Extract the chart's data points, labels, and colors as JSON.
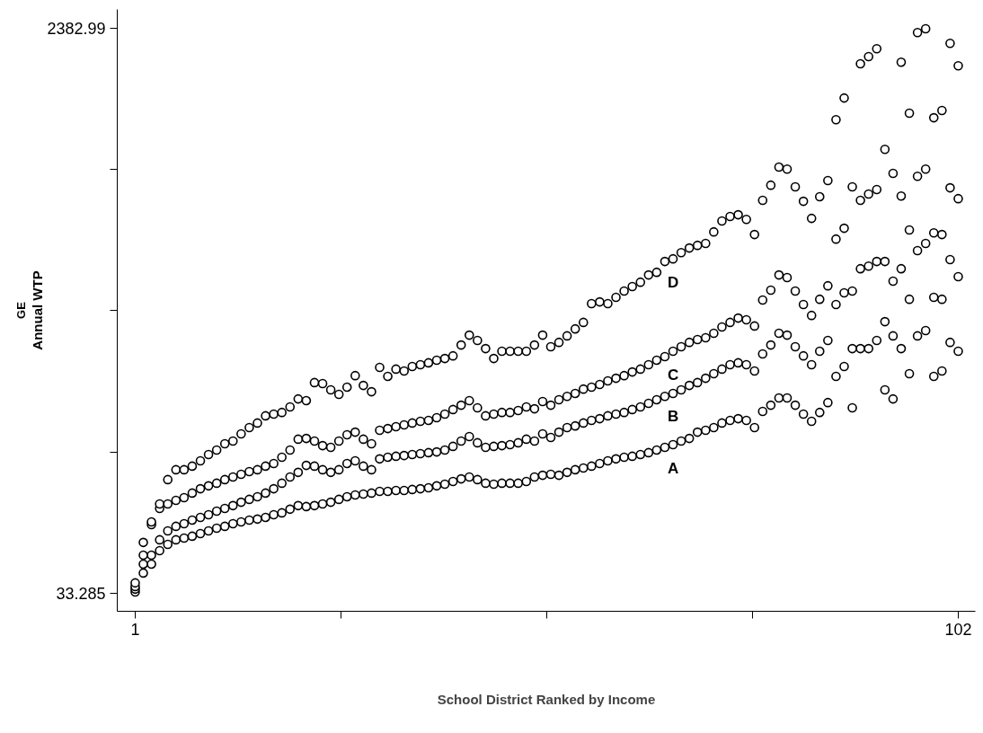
{
  "chart_data": {
    "type": "scatter",
    "xlabel": "School District Ranked by Income",
    "ylabel": "Annual WTP$_{GE}$",
    "x": [
      1,
      2,
      3,
      4,
      5,
      6,
      7,
      8,
      9,
      10,
      11,
      12,
      13,
      14,
      15,
      16,
      17,
      18,
      19,
      20,
      21,
      22,
      23,
      24,
      25,
      26,
      27,
      28,
      29,
      30,
      31,
      32,
      33,
      34,
      35,
      36,
      37,
      38,
      39,
      40,
      41,
      42,
      43,
      44,
      45,
      46,
      47,
      48,
      49,
      50,
      51,
      52,
      53,
      54,
      55,
      56,
      57,
      58,
      59,
      60,
      61,
      62,
      63,
      64,
      65,
      66,
      67,
      68,
      69,
      70,
      71,
      72,
      73,
      74,
      75,
      76,
      77,
      78,
      79,
      80,
      81,
      82,
      83,
      84,
      85,
      86,
      87,
      88,
      89,
      90,
      91,
      92,
      93,
      94,
      95,
      96,
      97,
      98,
      99,
      100,
      101,
      102
    ],
    "series": [
      {
        "name": "A",
        "color": "#000000",
        "values": [
          40,
          119,
          156,
          212,
          238,
          257,
          264,
          272,
          283,
          294,
          305,
          313,
          324,
          331,
          339,
          343,
          350,
          361,
          369,
          384,
          399,
          395,
          399,
          406,
          413,
          425,
          436,
          443,
          447,
          451,
          458,
          458,
          462,
          462,
          466,
          469,
          473,
          481,
          488,
          499,
          510,
          518,
          507,
          492,
          488,
          492,
          492,
          492,
          499,
          518,
          525,
          529,
          525,
          537,
          548,
          555,
          563,
          574,
          585,
          593,
          600,
          604,
          611,
          619,
          630,
          641,
          652,
          667,
          678,
          704,
          712,
          723,
          742,
          753,
          760,
          753,
          723,
          790,
          816,
          846,
          846,
          816,
          779,
          749,
          786,
          827,
          936,
          977,
          805,
          1051,
          1051,
          1085,
          880,
          842,
          1051,
          947,
          1104,
          1126,
          936,
          958,
          1077,
          1040
        ]
      },
      {
        "name": "B",
        "color": "#000000",
        "values": [
          52,
          156,
          193,
          257,
          294,
          313,
          324,
          339,
          350,
          361,
          376,
          387,
          399,
          413,
          425,
          436,
          451,
          469,
          492,
          518,
          537,
          566,
          563,
          548,
          537,
          548,
          574,
          585,
          563,
          548,
          593,
          600,
          604,
          607,
          611,
          615,
          619,
          622,
          630,
          645,
          667,
          686,
          660,
          641,
          645,
          648,
          652,
          660,
          675,
          667,
          697,
          682,
          704,
          723,
          730,
          742,
          753,
          760,
          772,
          779,
          786,
          798,
          809,
          824,
          839,
          853,
          865,
          880,
          898,
          910,
          928,
          947,
          966,
          984,
          992,
          984,
          958,
          1029,
          1066,
          1115,
          1107,
          1059,
          1021,
          984,
          1040,
          1085,
          1234,
          1283,
          1051,
          1383,
          1394,
          1413,
          1163,
          1104,
          1383,
          1256,
          1458,
          1488,
          1264,
          1256,
          1421,
          1350
        ]
      },
      {
        "name": "C",
        "color": "#000000",
        "values": [
          63,
          193,
          320,
          387,
          406,
          421,
          432,
          451,
          469,
          481,
          492,
          507,
          518,
          529,
          540,
          548,
          563,
          574,
          600,
          630,
          675,
          678,
          667,
          648,
          641,
          667,
          693,
          704,
          675,
          656,
          712,
          719,
          727,
          734,
          742,
          749,
          753,
          764,
          779,
          798,
          816,
          835,
          805,
          772,
          779,
          786,
          786,
          794,
          809,
          801,
          831,
          816,
          839,
          853,
          865,
          883,
          891,
          902,
          917,
          928,
          939,
          954,
          966,
          984,
          1003,
          1018,
          1040,
          1059,
          1077,
          1089,
          1096,
          1115,
          1141,
          1160,
          1178,
          1171,
          1145,
          1253,
          1294,
          1357,
          1346,
          1290,
          1234,
          1189,
          1256,
          1312,
          1506,
          1551,
          1290,
          1667,
          1693,
          1712,
          1413,
          1331,
          1685,
          1544,
          1767,
          1797,
          1532,
          1525,
          1719,
          1674
        ]
      },
      {
        "name": "D",
        "color": "#000000",
        "values": [
          78,
          246,
          331,
          406,
          507,
          548,
          548,
          563,
          585,
          611,
          630,
          656,
          667,
          697,
          723,
          742,
          772,
          779,
          786,
          809,
          842,
          835,
          910,
          906,
          880,
          861,
          891,
          939,
          898,
          872,
          973,
          936,
          966,
          958,
          977,
          984,
          992,
          1003,
          1010,
          1021,
          1066,
          1107,
          1085,
          1051,
          1010,
          1040,
          1040,
          1040,
          1040,
          1066,
          1107,
          1059,
          1077,
          1104,
          1133,
          1160,
          1238,
          1245,
          1238,
          1264,
          1290,
          1309,
          1327,
          1357,
          1368,
          1413,
          1424,
          1450,
          1469,
          1480,
          1488,
          1536,
          1581,
          1600,
          1607,
          1588,
          1525,
          1667,
          1730,
          1805,
          1797,
          1723,
          1663,
          1592,
          1682,
          1749,
          2002,
          2092,
          1723,
          2234,
          2264,
          2297,
          1879,
          1779,
          2241,
          2029,
          2364,
          2380,
          2010,
          2040,
          2319,
          2226
        ]
      }
    ],
    "xlim": [
      -1.2,
      104.1
    ],
    "ylim": [
      -40,
      2460
    ],
    "xticks": [
      1,
      {
        "value": 26.25,
        "label": null
      },
      {
        "value": 51.5,
        "label": null
      },
      {
        "value": 76.75,
        "label": null
      },
      102
    ],
    "yticks": [
      33.285,
      {
        "value": 620.711,
        "label": null
      },
      {
        "value": 1208.137,
        "label": null
      },
      {
        "value": 1795.564,
        "label": null
      },
      2382.99
    ],
    "marker": "circle",
    "grid": false,
    "legend": false
  }
}
